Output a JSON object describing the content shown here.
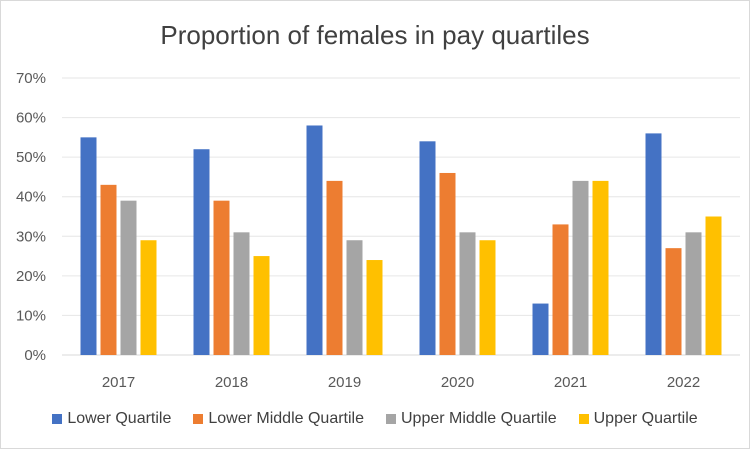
{
  "chart_data": {
    "type": "bar",
    "title": "Proportion of females in pay quartiles",
    "categories": [
      "2017",
      "2018",
      "2019",
      "2020",
      "2021",
      "2022"
    ],
    "series": [
      {
        "name": "Lower Quartile",
        "color": "#4472c4",
        "values": [
          55,
          52,
          58,
          54,
          13,
          56
        ]
      },
      {
        "name": "Lower Middle Quartile",
        "color": "#ed7d31",
        "values": [
          43,
          39,
          44,
          46,
          33,
          27
        ]
      },
      {
        "name": "Upper Middle Quartile",
        "color": "#a5a5a5",
        "values": [
          39,
          31,
          29,
          31,
          44,
          31
        ]
      },
      {
        "name": "Upper Quartile",
        "color": "#ffc000",
        "values": [
          29,
          25,
          24,
          29,
          44,
          35
        ]
      }
    ],
    "y_ticks": [
      "0%",
      "10%",
      "20%",
      "30%",
      "40%",
      "50%",
      "60%",
      "70%"
    ],
    "ylim": [
      0,
      70
    ],
    "grid": true,
    "legend_position": "bottom"
  }
}
